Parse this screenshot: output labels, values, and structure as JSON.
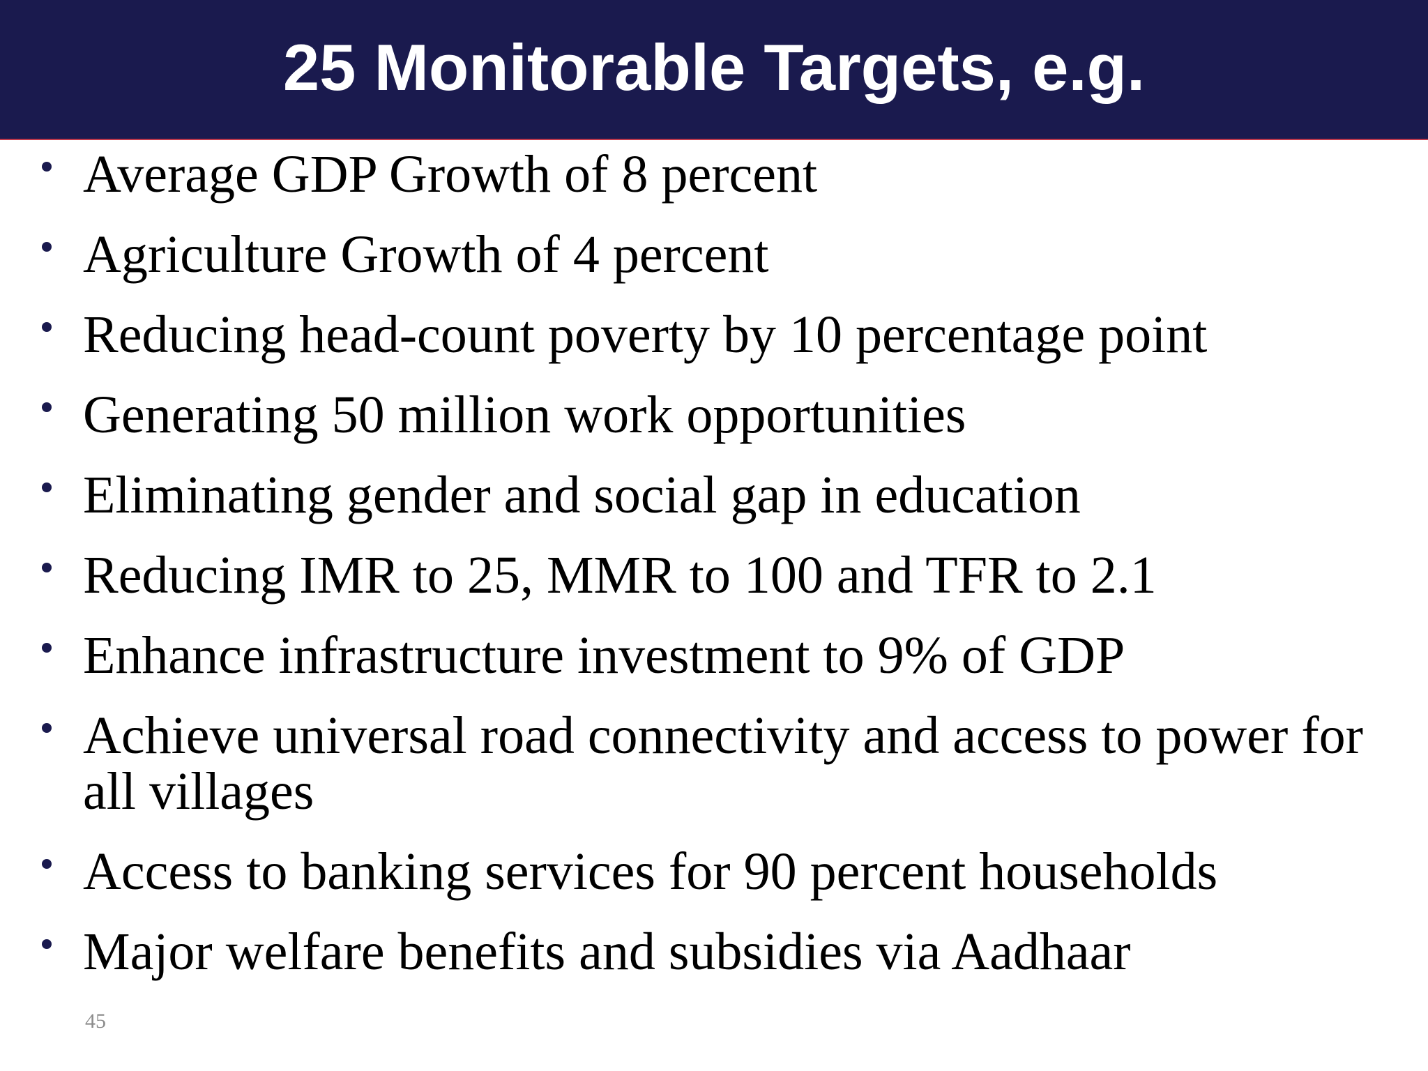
{
  "slide": {
    "title": "25 Monitorable Targets, e.g.",
    "bullets": [
      "Average GDP Growth of 8 percent",
      "Agriculture Growth of 4 percent",
      "Reducing head-count poverty by 10 percentage point",
      "Generating 50 million work opportunities",
      "Eliminating gender and social gap in education",
      "Reducing IMR to 25, MMR to 100 and TFR to 2.1",
      "Enhance infrastructure investment to 9% of GDP",
      "Achieve universal road connectivity and access to power for all villages",
      "Access to banking services for 90 percent households",
      "Major welfare benefits and subsidies via Aadhaar"
    ],
    "page_number": "45"
  },
  "colors": {
    "title_bar": "#1a1a4e",
    "title_text": "#ffffff",
    "bullet_marker": "#1a1a4e",
    "body_text": "#000000",
    "page_number_text": "#8c8c8c"
  }
}
